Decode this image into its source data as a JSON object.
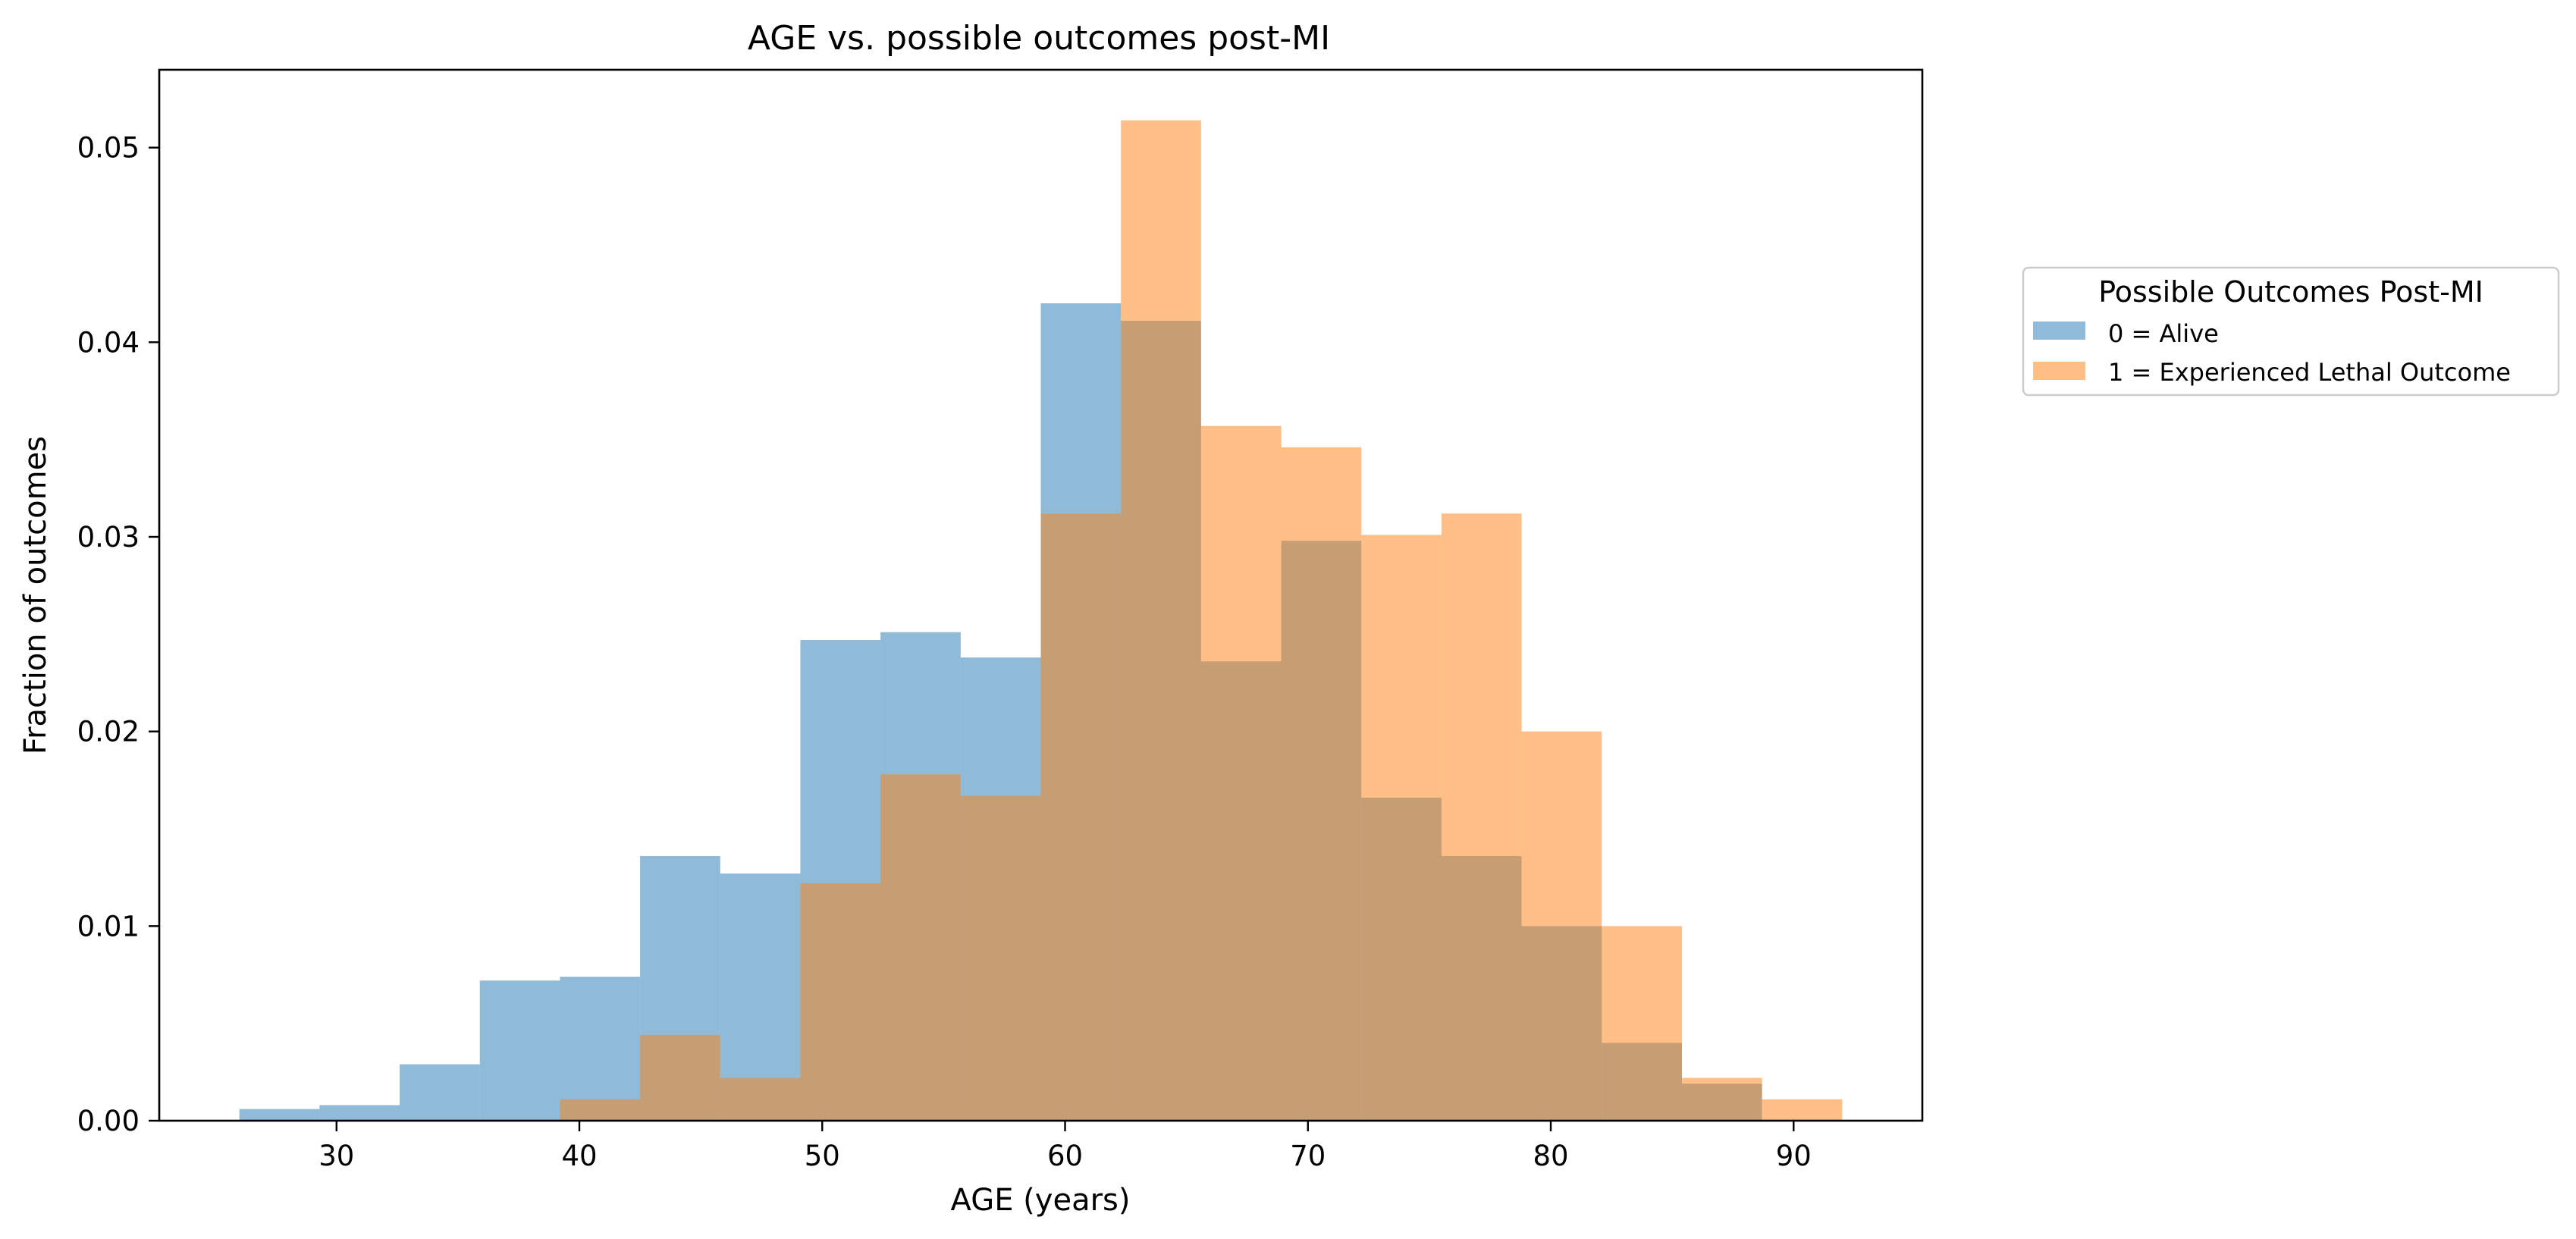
{
  "chart_data": {
    "type": "bar",
    "title": "AGE vs. possible outcomes post-MI",
    "xlabel": "AGE (years)",
    "ylabel": "Fraction of outcomes",
    "xlim": [
      22.7,
      95.3
    ],
    "ylim": [
      0.0,
      0.054
    ],
    "x_ticks": [
      30,
      40,
      50,
      60,
      70,
      80,
      90
    ],
    "x_tick_labels": [
      "30",
      "40",
      "50",
      "60",
      "70",
      "80",
      "90"
    ],
    "y_ticks": [
      0.0,
      0.01,
      0.02,
      0.03,
      0.04,
      0.05
    ],
    "y_tick_labels": [
      "0.00",
      "0.01",
      "0.02",
      "0.03",
      "0.04",
      "0.05"
    ],
    "grid": false,
    "legend": {
      "title": "Possible Outcomes Post-MI",
      "placement": "outside-right"
    },
    "series": [
      {
        "name": "0 = Alive",
        "color": "#1f77b4",
        "opacity": 0.5,
        "bins": [
          [
            26.0,
            29.3,
            0.0006
          ],
          [
            29.3,
            32.6,
            0.0008
          ],
          [
            32.6,
            35.9,
            0.0029
          ],
          [
            35.9,
            39.2,
            0.0072
          ],
          [
            39.2,
            42.5,
            0.0074
          ],
          [
            42.5,
            45.8,
            0.0136
          ],
          [
            45.8,
            49.1,
            0.0127
          ],
          [
            49.1,
            52.4,
            0.0247
          ],
          [
            52.4,
            55.7,
            0.0251
          ],
          [
            55.7,
            59.0,
            0.0238
          ],
          [
            59.0,
            62.3,
            0.042
          ],
          [
            62.3,
            65.6,
            0.0411
          ],
          [
            65.6,
            68.9,
            0.0236
          ],
          [
            68.9,
            72.2,
            0.0298
          ],
          [
            72.2,
            75.5,
            0.0166
          ],
          [
            75.5,
            78.8,
            0.0136
          ],
          [
            78.8,
            82.1,
            0.01
          ],
          [
            82.1,
            85.4,
            0.004
          ],
          [
            85.4,
            88.7,
            0.0019
          ]
        ]
      },
      {
        "name": "1 = Experienced Lethal Outcome",
        "color": "#ff7f0e",
        "opacity": 0.5,
        "bins": [
          [
            39.2,
            42.5,
            0.0011
          ],
          [
            42.5,
            45.8,
            0.0044
          ],
          [
            45.8,
            49.1,
            0.0022
          ],
          [
            49.1,
            52.4,
            0.0122
          ],
          [
            52.4,
            55.7,
            0.0178
          ],
          [
            55.7,
            59.0,
            0.0167
          ],
          [
            59.0,
            62.3,
            0.0312
          ],
          [
            62.3,
            65.6,
            0.0514
          ],
          [
            65.6,
            68.9,
            0.0357
          ],
          [
            68.9,
            72.2,
            0.0346
          ],
          [
            72.2,
            75.5,
            0.0301
          ],
          [
            75.5,
            78.8,
            0.0312
          ],
          [
            78.8,
            82.1,
            0.02
          ],
          [
            82.1,
            85.4,
            0.01
          ],
          [
            85.4,
            88.7,
            0.0022
          ],
          [
            88.7,
            92.0,
            0.0011
          ]
        ]
      }
    ]
  }
}
